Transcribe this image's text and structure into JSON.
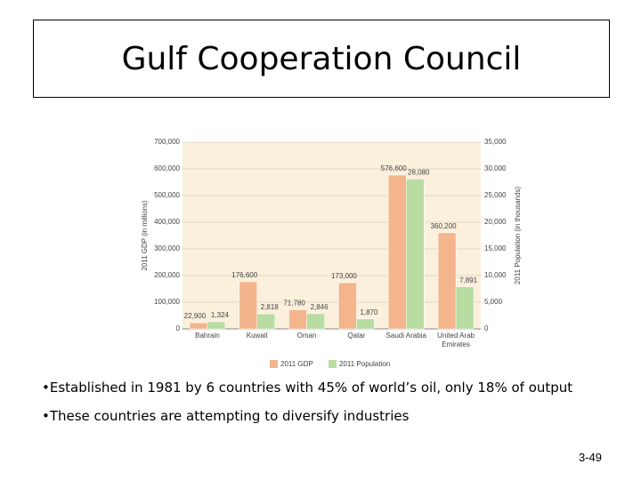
{
  "slide": {
    "title": "Gulf Cooperation Council",
    "bullets": [
      "•Established in 1981 by 6 countries with 45% of world’s oil, only 18% of output",
      "•These countries are attempting to diversify industries"
    ],
    "page_number": "3-49"
  },
  "chart_data": {
    "type": "bar",
    "y_label": "2011 GDP (in millions)",
    "y2_label": "2011 Population (in thousands)",
    "categories": [
      "Bahrain",
      "Kuwait",
      "Oman",
      "Qatar",
      "Saudi Arabia",
      "United Arab Emirates"
    ],
    "series": [
      {
        "name": "2011 GDP",
        "color": "#f4b48c",
        "values": [
          22900,
          176600,
          71780,
          173000,
          576600,
          360200
        ],
        "value_labels": [
          "22,900",
          "176,600",
          "71,780",
          "173,000",
          "576,600",
          "360,200"
        ]
      },
      {
        "name": "2011 Population",
        "color": "#b8dca2",
        "axis": "y2",
        "values": [
          1324,
          2818,
          2846,
          1870,
          28080,
          7891
        ],
        "value_labels": [
          "1,324",
          "2,818",
          "2,846",
          "1,870",
          "28,080",
          "7,891"
        ]
      }
    ],
    "ylim": [
      0,
      700000
    ],
    "yticks": [
      0,
      {
        "value": 100000,
        "label": "100,000"
      },
      {
        "value": 200000,
        "label": "200,000"
      },
      {
        "value": 300000,
        "label": "300,000"
      },
      {
        "value": 400000,
        "label": "400,000"
      },
      {
        "value": 500000,
        "label": "500,000"
      },
      {
        "value": 600000,
        "label": "600,000"
      },
      {
        "value": 700000,
        "label": "700,000"
      }
    ],
    "y2lim": [
      0,
      35000
    ],
    "y2ticks": [
      0,
      {
        "value": 5000,
        "label": "5,000"
      },
      {
        "value": 10000,
        "label": "10,000"
      },
      {
        "value": 15000,
        "label": "15,000"
      },
      {
        "value": 20000,
        "label": "20,000"
      },
      {
        "value": 25000,
        "label": "25,000"
      },
      {
        "value": 30000,
        "label": "30,000"
      },
      {
        "value": 35000,
        "label": "35,000"
      }
    ],
    "grid": true,
    "legend": "bottom"
  }
}
